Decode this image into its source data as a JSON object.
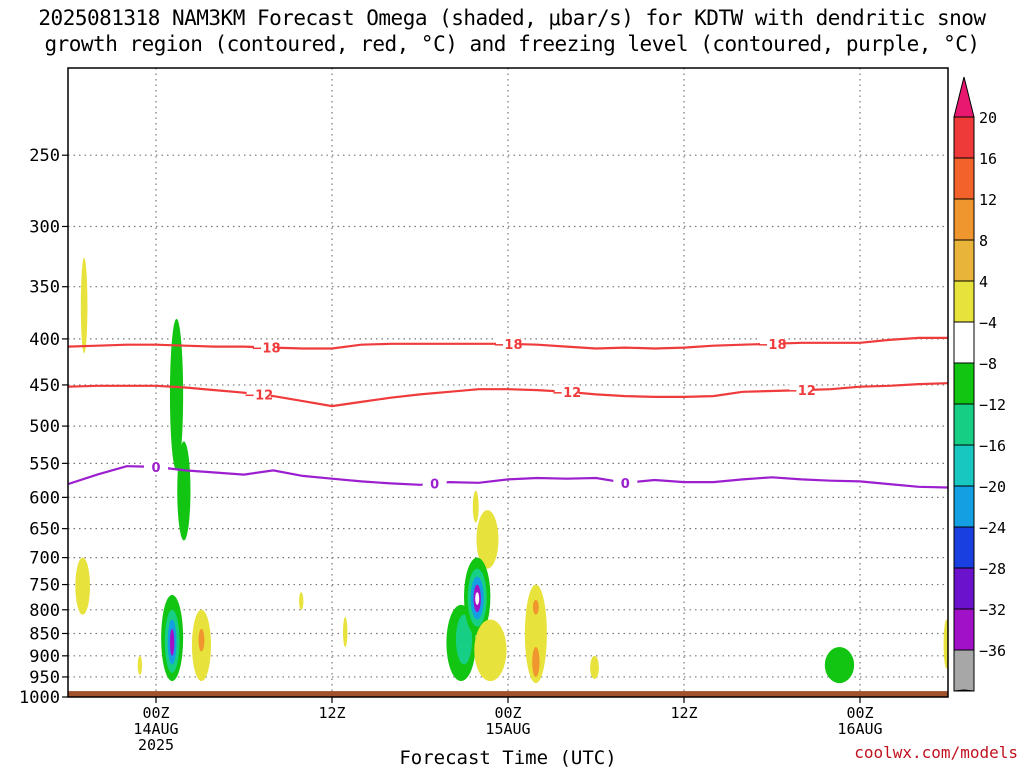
{
  "chart_data": {
    "type": "heatmap",
    "title_lines": [
      "2025081318 NAM3KM Forecast Omega (shaded, μbar/s) for KDTW with dendritic snow",
      "growth region (contoured, red, °C) and freezing level (contoured, purple, °C)"
    ],
    "xlabel": "Forecast Time (UTC)",
    "ylabel": "",
    "x_ticks": [
      {
        "t": 6,
        "lines": [
          "00Z",
          "14AUG",
          "2025"
        ]
      },
      {
        "t": 18,
        "lines": [
          "12Z"
        ]
      },
      {
        "t": 30,
        "lines": [
          "00Z",
          "15AUG"
        ]
      },
      {
        "t": 42,
        "lines": [
          "12Z"
        ]
      },
      {
        "t": 54,
        "lines": [
          "00Z",
          "16AUG"
        ]
      }
    ],
    "xlim": [
      0,
      60
    ],
    "y_scale": "log-pressure",
    "y_ticks": [
      250,
      300,
      350,
      400,
      450,
      500,
      550,
      600,
      650,
      700,
      750,
      800,
      850,
      900,
      950,
      1000
    ],
    "ylim": [
      1000,
      200
    ],
    "grid": true,
    "colorbar": {
      "labels": [
        "20",
        "16",
        "12",
        "8",
        "4",
        "−4",
        "−8",
        "−12",
        "−16",
        "−20",
        "−24",
        "−28",
        "−32",
        "−36"
      ],
      "colors": [
        "#e8176f",
        "#ef3a3a",
        "#f3622a",
        "#f0962e",
        "#e8b43a",
        "#e8e23c",
        "#ffffff",
        "#12c512",
        "#16cf85",
        "#17c7c0",
        "#149fe2",
        "#1a3fe0",
        "#6a12cc",
        "#a011c8",
        "#a7a7a7",
        "#000000"
      ]
    },
    "contours": [
      {
        "color": "#ef3b3b",
        "label": "−18",
        "label_times": [
          13.5,
          30,
          48
        ],
        "points": [
          [
            0,
            408
          ],
          [
            2,
            407
          ],
          [
            4,
            406
          ],
          [
            6,
            406
          ],
          [
            8,
            407
          ],
          [
            10,
            408
          ],
          [
            12,
            408
          ],
          [
            14,
            409
          ],
          [
            16,
            410
          ],
          [
            18,
            410
          ],
          [
            20,
            406
          ],
          [
            22,
            405
          ],
          [
            24,
            405
          ],
          [
            26,
            405
          ],
          [
            28,
            405
          ],
          [
            30,
            405
          ],
          [
            32,
            406
          ],
          [
            34,
            408
          ],
          [
            36,
            410
          ],
          [
            38,
            409
          ],
          [
            40,
            410
          ],
          [
            42,
            409
          ],
          [
            44,
            407
          ],
          [
            46,
            406
          ],
          [
            48,
            405
          ],
          [
            50,
            404
          ],
          [
            52,
            404
          ],
          [
            54,
            404
          ],
          [
            56,
            401
          ],
          [
            58,
            399
          ],
          [
            60,
            399
          ]
        ]
      },
      {
        "color": "#ef3b3b",
        "label": "−12",
        "label_times": [
          13,
          34,
          50
        ],
        "points": [
          [
            0,
            452
          ],
          [
            2,
            451
          ],
          [
            4,
            451
          ],
          [
            6,
            451
          ],
          [
            8,
            453
          ],
          [
            10,
            456
          ],
          [
            12,
            459
          ],
          [
            14,
            463
          ],
          [
            16,
            469
          ],
          [
            18,
            475
          ],
          [
            20,
            470
          ],
          [
            22,
            465
          ],
          [
            24,
            461
          ],
          [
            26,
            458
          ],
          [
            28,
            455
          ],
          [
            30,
            455
          ],
          [
            32,
            456
          ],
          [
            34,
            458
          ],
          [
            36,
            461
          ],
          [
            38,
            463
          ],
          [
            40,
            464
          ],
          [
            42,
            464
          ],
          [
            44,
            463
          ],
          [
            46,
            458
          ],
          [
            48,
            457
          ],
          [
            50,
            456
          ],
          [
            52,
            455
          ],
          [
            54,
            452
          ],
          [
            56,
            451
          ],
          [
            58,
            449
          ],
          [
            60,
            448
          ]
        ]
      },
      {
        "color": "#9c1fcf",
        "label": "0",
        "label_times": [
          6,
          25,
          38
        ],
        "points": [
          [
            0,
            580
          ],
          [
            2,
            566
          ],
          [
            4,
            554
          ],
          [
            6,
            555
          ],
          [
            8,
            560
          ],
          [
            10,
            563
          ],
          [
            12,
            566
          ],
          [
            14,
            560
          ],
          [
            16,
            568
          ],
          [
            18,
            572
          ],
          [
            20,
            576
          ],
          [
            22,
            579
          ],
          [
            24,
            581
          ],
          [
            26,
            577
          ],
          [
            28,
            578
          ],
          [
            30,
            573
          ],
          [
            32,
            571
          ],
          [
            34,
            572
          ],
          [
            36,
            571
          ],
          [
            38,
            578
          ],
          [
            40,
            574
          ],
          [
            42,
            577
          ],
          [
            44,
            577
          ],
          [
            46,
            573
          ],
          [
            48,
            570
          ],
          [
            50,
            573
          ],
          [
            52,
            575
          ],
          [
            54,
            576
          ],
          [
            56,
            580
          ],
          [
            58,
            584
          ],
          [
            60,
            585
          ]
        ]
      }
    ],
    "omega_regions": [
      {
        "color": "#e8e23c",
        "t": 1.1,
        "p_top": 325,
        "p_bottom": 415,
        "w_hours": 0.45
      },
      {
        "color": "#e8e23c",
        "t": 1.0,
        "p_top": 700,
        "p_bottom": 810,
        "w_hours": 1.0
      },
      {
        "color": "#e8e23c",
        "t": 4.9,
        "p_top": 900,
        "p_bottom": 945,
        "w_hours": 0.3
      },
      {
        "color": "#12c512",
        "t": 7.4,
        "p_top": 380,
        "p_bottom": 560,
        "w_hours": 0.9
      },
      {
        "color": "#12c512",
        "t": 7.9,
        "p_top": 520,
        "p_bottom": 670,
        "w_hours": 0.9
      },
      {
        "color": "#12c512",
        "t": 7.1,
        "p_top": 770,
        "p_bottom": 960,
        "w_hours": 1.5
      },
      {
        "color": "#16cf85",
        "t": 7.1,
        "p_top": 800,
        "p_bottom": 940,
        "w_hours": 1.0
      },
      {
        "color": "#149fe2",
        "t": 7.1,
        "p_top": 820,
        "p_bottom": 920,
        "w_hours": 0.6
      },
      {
        "color": "#a011c8",
        "t": 7.1,
        "p_top": 840,
        "p_bottom": 900,
        "w_hours": 0.3
      },
      {
        "color": "#e8e23c",
        "t": 9.1,
        "p_top": 800,
        "p_bottom": 960,
        "w_hours": 1.3
      },
      {
        "color": "#f0962e",
        "t": 9.1,
        "p_top": 840,
        "p_bottom": 890,
        "w_hours": 0.4
      },
      {
        "color": "#e8e23c",
        "t": 15.9,
        "p_top": 765,
        "p_bottom": 800,
        "w_hours": 0.3
      },
      {
        "color": "#e8e23c",
        "t": 18.9,
        "p_top": 815,
        "p_bottom": 880,
        "w_hours": 0.3
      },
      {
        "color": "#12c512",
        "t": 26.8,
        "p_top": 790,
        "p_bottom": 960,
        "w_hours": 2.0
      },
      {
        "color": "#16cf85",
        "t": 27.0,
        "p_top": 810,
        "p_bottom": 920,
        "w_hours": 1.1
      },
      {
        "color": "#e8e23c",
        "t": 27.8,
        "p_top": 590,
        "p_bottom": 640,
        "w_hours": 0.4
      },
      {
        "color": "#e8e23c",
        "t": 28.6,
        "p_top": 620,
        "p_bottom": 720,
        "w_hours": 1.5
      },
      {
        "color": "#12c512",
        "t": 27.9,
        "p_top": 700,
        "p_bottom": 855,
        "w_hours": 1.8
      },
      {
        "color": "#16cf85",
        "t": 27.9,
        "p_top": 720,
        "p_bottom": 835,
        "w_hours": 1.3
      },
      {
        "color": "#149fe2",
        "t": 27.9,
        "p_top": 735,
        "p_bottom": 820,
        "w_hours": 0.9
      },
      {
        "color": "#a011c8",
        "t": 27.9,
        "p_top": 750,
        "p_bottom": 805,
        "w_hours": 0.5
      },
      {
        "color": "#ffffff",
        "t": 27.9,
        "p_top": 765,
        "p_bottom": 790,
        "w_hours": 0.2
      },
      {
        "color": "#e8e23c",
        "t": 28.8,
        "p_top": 820,
        "p_bottom": 960,
        "w_hours": 2.2
      },
      {
        "color": "#e8e23c",
        "t": 31.9,
        "p_top": 750,
        "p_bottom": 965,
        "w_hours": 1.5
      },
      {
        "color": "#f0962e",
        "t": 31.9,
        "p_top": 780,
        "p_bottom": 810,
        "w_hours": 0.4
      },
      {
        "color": "#f0962e",
        "t": 31.9,
        "p_top": 880,
        "p_bottom": 950,
        "w_hours": 0.5
      },
      {
        "color": "#e8e23c",
        "t": 35.9,
        "p_top": 900,
        "p_bottom": 955,
        "w_hours": 0.6
      },
      {
        "color": "#12c512",
        "t": 52.6,
        "p_top": 880,
        "p_bottom": 965,
        "w_hours": 2.0
      },
      {
        "color": "#e8e23c",
        "t": 59.9,
        "p_top": 820,
        "p_bottom": 930,
        "w_hours": 0.4
      }
    ],
    "terrain": {
      "color": "#a0522d",
      "p_top": 985
    }
  },
  "watermark": "coolwx.com/models"
}
